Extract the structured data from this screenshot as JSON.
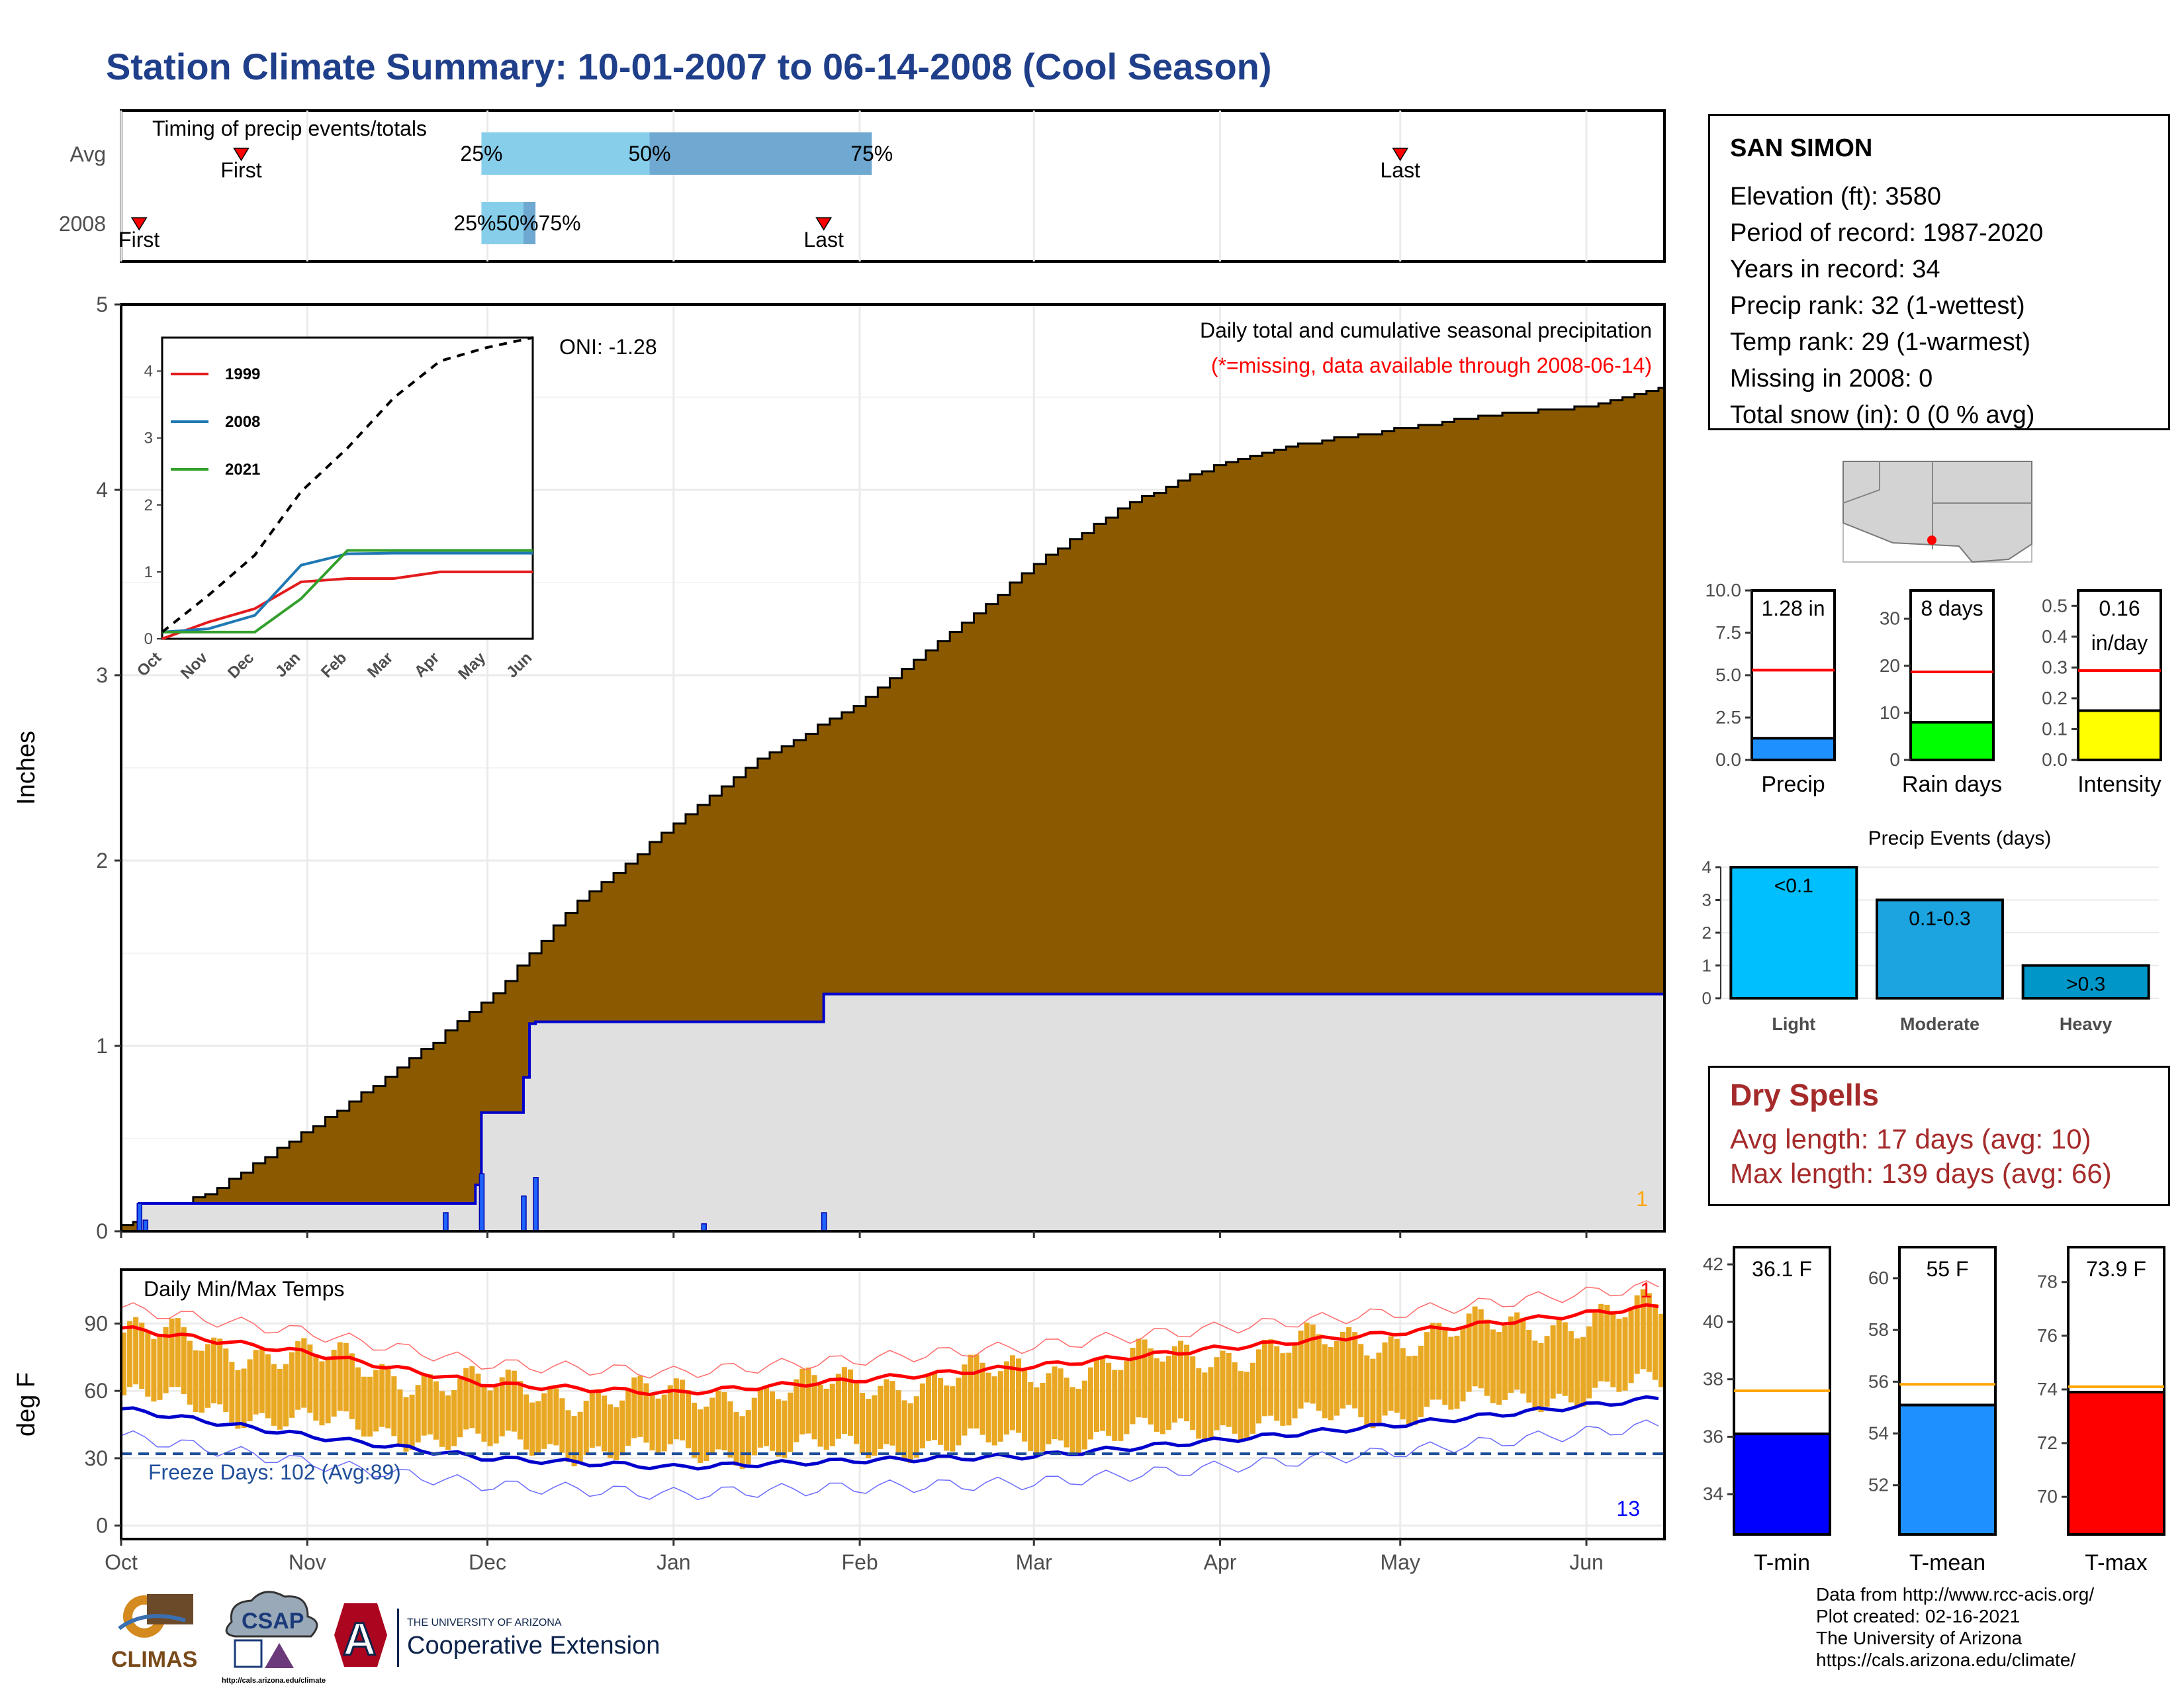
{
  "title": "Station Climate Summary: 10-01-2007 to 06-14-2008 (Cool Season)",
  "station": {
    "name": "SAN SIMON",
    "lines": [
      "Elevation (ft): 3580",
      "Period of record: 1987-2020",
      "Years in record: 34",
      "Precip rank: 32 (1-wettest)",
      "Temp rank: 29 (1-warmest)",
      "Missing in 2008: 0",
      "Total snow (in): 0 (0 % avg)"
    ]
  },
  "timing": {
    "label": "Timing of precip events/totals",
    "rows": [
      "Avg",
      "2008"
    ],
    "avg": {
      "first": "Oct 21",
      "p25": "Nov 30",
      "p50": "Dec 28",
      "p75": "Feb 3",
      "last": "May 1"
    },
    "y2008": {
      "first": "Oct 4",
      "p25": "Nov 30",
      "p50": "Dec 7",
      "p75": "Dec 9",
      "last": "Jan 26"
    },
    "marker_labels": {
      "first": "First",
      "last": "Last",
      "p25": "25%",
      "p50": "50%",
      "p75": "75%"
    },
    "avg_p50_text": "50%",
    "y2008_pct_text": "25%50%75%"
  },
  "precip_panel": {
    "ylabel": "Inches",
    "oni": "ONI: -1.28",
    "caption": "Daily total and cumulative seasonal precipitation",
    "missing_note": "(*=missing, data available through 2008-06-14)",
    "count_label": "1",
    "colors": {
      "avg_fill": "#8B5A00",
      "obs_fill": "#E0E0E0",
      "obs_line": "#0000CD",
      "daily_bar": "#1E64FF"
    }
  },
  "temp_panel": {
    "ylabel": "deg F",
    "label": "Daily Min/Max Temps",
    "freeze_text": "Freeze Days: 102 (Avg:89)",
    "min_count": "13",
    "max_count": "1"
  },
  "month_labels": [
    "Oct",
    "Nov",
    "Dec",
    "Jan",
    "Feb",
    "Mar",
    "Apr",
    "May",
    "Jun"
  ],
  "inset": {
    "legend": [
      "1999",
      "2008",
      "2021"
    ],
    "colors": [
      "#E31A1C",
      "#1F78B4",
      "#33A02C"
    ],
    "months": [
      "Oct",
      "Nov",
      "Dec",
      "Jan",
      "Feb",
      "Mar",
      "Apr",
      "May",
      "Jun"
    ]
  },
  "gauges": [
    {
      "name": "Precip",
      "value_text": "1.28 in",
      "value": 1.28,
      "avg": 5.3,
      "ymax": 10.0,
      "ticks": [
        "10.0",
        "7.5",
        "5.0",
        "2.5",
        "0.0"
      ],
      "color": "#1E90FF"
    },
    {
      "name": "Rain days",
      "value_text": "8 days",
      "value": 8,
      "avg": 18.7,
      "ymax": 36,
      "ticks": [
        "30",
        "20",
        "10",
        "0"
      ],
      "color": "#00FF00"
    },
    {
      "name": "Intensity",
      "value_text": "0.16",
      "value_text2": "in/day",
      "value": 0.16,
      "avg": 0.29,
      "ymax": 0.55,
      "ticks": [
        "0.5",
        "0.4",
        "0.3",
        "0.2",
        "0.1",
        "0.0"
      ],
      "color": "#FFFF00"
    }
  ],
  "events": {
    "title": "Precip Events (days)",
    "categories": [
      "Light",
      "Moderate",
      "Heavy"
    ],
    "values": [
      4,
      3,
      1
    ],
    "bar_labels": [
      "<0.1",
      "0.1-0.3",
      ">0.3"
    ],
    "colors": [
      "#00BFFF",
      "#1CA4E0",
      "#0096C8"
    ],
    "ticks": [
      "4",
      "3",
      "2",
      "1",
      "0"
    ]
  },
  "dry_spells": {
    "title": "Dry Spells",
    "avg": "Avg length: 17 days (avg: 10)",
    "max": "Max length: 139 days (avg: 66)"
  },
  "temp_gauges": [
    {
      "name": "T-min",
      "value_text": "36.1 F",
      "value": 36.1,
      "avg": 37.6,
      "ymin": 32.6,
      "ymax": 42.6,
      "ticks": [
        "42",
        "40",
        "38",
        "36",
        "34"
      ],
      "color": "#0000FF"
    },
    {
      "name": "T-mean",
      "value_text": "55 F",
      "value": 55.1,
      "avg": 55.9,
      "ymin": 50.1,
      "ymax": 61.2,
      "ticks": [
        "60",
        "58",
        "56",
        "54",
        "52"
      ],
      "color": "#1E90FF"
    },
    {
      "name": "T-max",
      "value_text": "73.9 F",
      "value": 73.9,
      "avg": 74.1,
      "ymin": 68.6,
      "ymax": 79.3,
      "ticks": [
        "78",
        "76",
        "74",
        "72",
        "70"
      ],
      "color": "#FF0000"
    }
  ],
  "credits": [
    "Data from http://www.rcc-acis.org/",
    "Plot created: 02-16-2021",
    "The University of Arizona",
    "https://cals.arizona.edu/climate/"
  ],
  "logos": {
    "climas": "CLIMAS",
    "csap": "CSAP",
    "csap_url": "http://cals.arizona.edu/climate",
    "ua_small": "THE UNIVERSITY OF ARIZONA",
    "ua_big": "Cooperative Extension"
  },
  "chart_data": [
    {
      "type": "area",
      "title": "Daily total and cumulative seasonal precipitation",
      "ylabel": "Inches",
      "ylim": [
        0,
        5
      ],
      "series": [
        {
          "name": "Average cumulative precipitation",
          "x": [
            "10-01",
            "10-15",
            "11-01",
            "11-15",
            "12-01",
            "12-15",
            "01-01",
            "01-15",
            "02-01",
            "02-15",
            "03-01",
            "03-15",
            "04-01",
            "04-15",
            "05-01",
            "05-15",
            "06-01",
            "06-14"
          ],
          "values": [
            0.03,
            0.2,
            0.55,
            0.85,
            1.25,
            1.75,
            2.2,
            2.55,
            2.85,
            3.2,
            3.6,
            3.9,
            4.15,
            4.25,
            4.33,
            4.4,
            4.45,
            4.55
          ]
        },
        {
          "name": "2008 cumulative precipitation",
          "x": [
            "10-01",
            "10-04",
            "10-05",
            "11-28",
            "11-29",
            "11-30",
            "12-07",
            "12-08",
            "12-09",
            "01-26",
            "06-14"
          ],
          "values": [
            0.0,
            0.15,
            0.15,
            0.15,
            0.25,
            0.64,
            0.83,
            1.12,
            1.13,
            1.28,
            1.28
          ]
        },
        {
          "name": "2008 daily precipitation",
          "x": [
            "10-04",
            "10-05",
            "11-24",
            "11-30",
            "12-07",
            "12-09",
            "01-06",
            "01-26"
          ],
          "values": [
            0.15,
            0.06,
            0.1,
            0.31,
            0.19,
            0.29,
            0.04,
            0.1
          ]
        }
      ]
    },
    {
      "type": "line",
      "title": "Daily Min/Max Temps",
      "ylabel": "deg F",
      "ylim": [
        -6,
        114
      ],
      "series": [
        {
          "name": "Average max temperature",
          "x": [
            "10-01",
            "11-01",
            "12-01",
            "01-01",
            "02-01",
            "03-01",
            "04-01",
            "05-01",
            "06-14"
          ],
          "values": [
            88,
            77,
            63,
            59,
            65,
            71,
            79,
            86,
            98
          ]
        },
        {
          "name": "Average min temperature",
          "x": [
            "10-01",
            "11-01",
            "12-01",
            "01-01",
            "02-01",
            "03-01",
            "04-01",
            "05-01",
            "06-14"
          ],
          "values": [
            52,
            40,
            30,
            26,
            29,
            31,
            38,
            45,
            57
          ]
        },
        {
          "name": "Freeze threshold",
          "x": [
            "10-01",
            "06-14"
          ],
          "values": [
            32,
            32
          ]
        }
      ]
    },
    {
      "type": "line",
      "title": "",
      "x": [
        "Oct",
        "Nov",
        "Dec",
        "Jan",
        "Feb",
        "Mar",
        "Apr",
        "May",
        "Jun"
      ],
      "ylim": [
        0,
        4.5
      ],
      "series": [
        {
          "name": "1999",
          "values": [
            0.0,
            0.25,
            0.45,
            0.85,
            0.9,
            0.9,
            1.0,
            1.0,
            1.0
          ]
        },
        {
          "name": "2008",
          "values": [
            0.1,
            0.15,
            0.35,
            1.1,
            1.27,
            1.28,
            1.28,
            1.28,
            1.28
          ]
        },
        {
          "name": "2021",
          "values": [
            0.1,
            0.1,
            0.1,
            0.6,
            1.32,
            1.32,
            1.32,
            1.32,
            1.32
          ]
        },
        {
          "name": "Average",
          "values": [
            0.1,
            0.65,
            1.25,
            2.2,
            2.85,
            3.6,
            4.15,
            4.35,
            4.5
          ]
        }
      ]
    },
    {
      "type": "bar",
      "title": "Precip Events (days)",
      "categories": [
        "Light",
        "Moderate",
        "Heavy"
      ],
      "values": [
        4,
        3,
        1
      ],
      "ylim": [
        0,
        4
      ]
    }
  ]
}
